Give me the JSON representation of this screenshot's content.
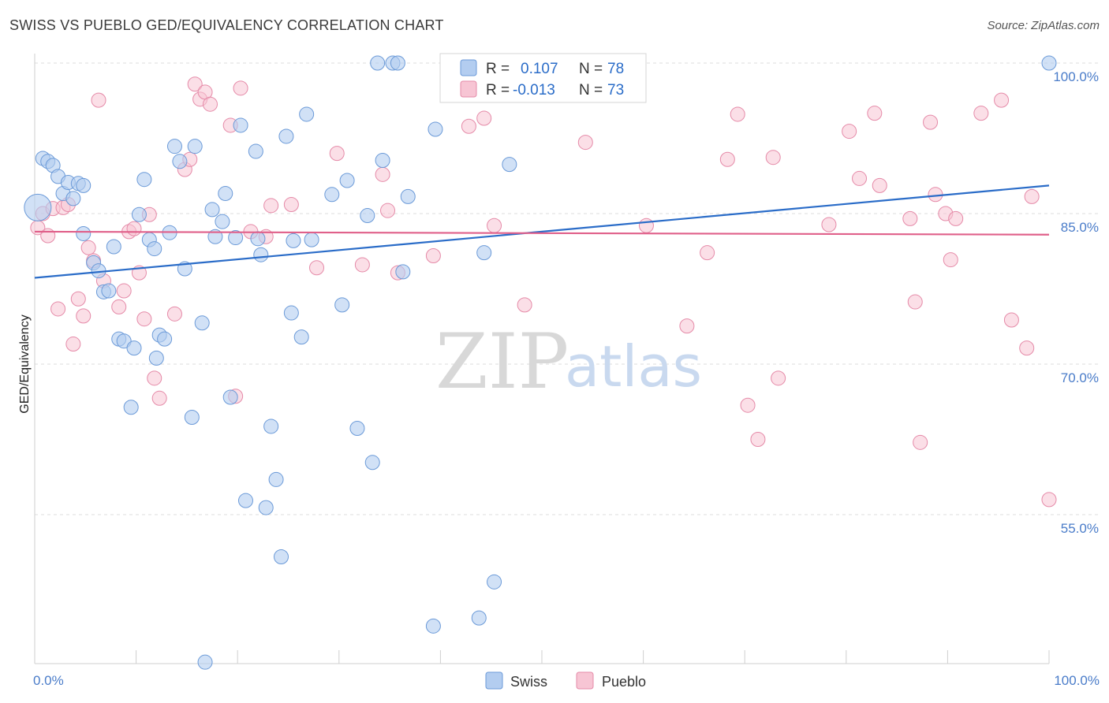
{
  "title": "SWISS VS PUEBLO GED/EQUIVALENCY CORRELATION CHART",
  "source": "Source: ZipAtlas.com",
  "watermark": {
    "zip": "ZIP",
    "atlas": "atlas"
  },
  "legend": {
    "swiss": {
      "r_label": "R =",
      "r_value": "0.107",
      "n_label": "N =",
      "n_value": "78"
    },
    "pueblo": {
      "r_label": "R =",
      "r_value": "-0.013",
      "n_label": "N =",
      "n_value": "73"
    }
  },
  "colors": {
    "swiss_fill": "#b3cdf0",
    "swiss_stroke": "#6b9ad8",
    "swiss_line": "#2a6cc8",
    "pueblo_fill": "#f7c5d4",
    "pueblo_stroke": "#e58aa8",
    "pueblo_line": "#e0608a",
    "tick_label": "#4a7cc9"
  },
  "chart_data": {
    "type": "scatter",
    "title": "SWISS VS PUEBLO GED/EQUIVALENCY CORRELATION CHART",
    "xlabel": "",
    "ylabel": "GED/Equivalency",
    "xlim": [
      0,
      100
    ],
    "ylim": [
      40,
      101.5
    ],
    "y_ticks": [
      {
        "value": 100,
        "label": "100.0%"
      },
      {
        "value": 85,
        "label": "85.0%"
      },
      {
        "value": 70,
        "label": "70.0%"
      },
      {
        "value": 55,
        "label": "55.0%"
      }
    ],
    "x_ticks": [
      {
        "value": 0,
        "label": "0.0%"
      },
      {
        "value": 100,
        "label": "100.0%"
      }
    ],
    "grid": true,
    "legend_position": "top-center",
    "series": [
      {
        "name": "Swiss",
        "trend": {
          "x": [
            0,
            100
          ],
          "y": [
            78.6,
            87.8
          ]
        },
        "points": [
          [
            0.3,
            85.6
          ],
          [
            0.8,
            90.5
          ],
          [
            1.3,
            90.2
          ],
          [
            1.8,
            89.8
          ],
          [
            2.3,
            88.7
          ],
          [
            2.8,
            87.0
          ],
          [
            3.3,
            88.1
          ],
          [
            3.8,
            86.5
          ],
          [
            4.3,
            88.0
          ],
          [
            4.8,
            87.8
          ],
          [
            4.8,
            83.0
          ],
          [
            5.8,
            80.1
          ],
          [
            6.3,
            79.3
          ],
          [
            6.8,
            77.2
          ],
          [
            7.3,
            77.3
          ],
          [
            7.8,
            81.7
          ],
          [
            8.3,
            72.5
          ],
          [
            8.8,
            72.3
          ],
          [
            9.5,
            65.7
          ],
          [
            9.8,
            71.6
          ],
          [
            10.3,
            84.9
          ],
          [
            10.8,
            88.4
          ],
          [
            11.3,
            82.4
          ],
          [
            11.8,
            81.5
          ],
          [
            12.3,
            72.9
          ],
          [
            12.8,
            72.5
          ],
          [
            13.3,
            83.1
          ],
          [
            13.8,
            91.7
          ],
          [
            14.3,
            90.2
          ],
          [
            14.8,
            79.5
          ],
          [
            15.5,
            64.7
          ],
          [
            15.8,
            91.7
          ],
          [
            16.5,
            74.1
          ],
          [
            16.8,
            40.3
          ],
          [
            17.5,
            85.4
          ],
          [
            18.5,
            84.2
          ],
          [
            18.8,
            87.0
          ],
          [
            19.3,
            66.7
          ],
          [
            17.8,
            82.7
          ],
          [
            19.8,
            82.6
          ],
          [
            20.3,
            93.8
          ],
          [
            20.8,
            56.4
          ],
          [
            21.8,
            91.2
          ],
          [
            22.3,
            80.9
          ],
          [
            22.8,
            55.7
          ],
          [
            23.3,
            63.8
          ],
          [
            23.8,
            58.5
          ],
          [
            24.3,
            50.8
          ],
          [
            24.8,
            92.7
          ],
          [
            25.3,
            75.1
          ],
          [
            25.5,
            82.3
          ],
          [
            26.3,
            72.7
          ],
          [
            26.8,
            94.9
          ],
          [
            27.3,
            82.4
          ],
          [
            29.3,
            86.9
          ],
          [
            30.3,
            75.9
          ],
          [
            30.8,
            88.3
          ],
          [
            31.8,
            63.6
          ],
          [
            32.8,
            84.8
          ],
          [
            33.3,
            60.2
          ],
          [
            33.8,
            100
          ],
          [
            34.3,
            90.3
          ],
          [
            35.3,
            100
          ],
          [
            35.8,
            100
          ],
          [
            36.3,
            79.2
          ],
          [
            36.8,
            86.7
          ],
          [
            39.3,
            43.9
          ],
          [
            39.5,
            93.4
          ],
          [
            41.3,
            100
          ],
          [
            43.8,
            44.7
          ],
          [
            44.3,
            81.1
          ],
          [
            45.3,
            48.3
          ],
          [
            46.8,
            89.9
          ],
          [
            48.3,
            100
          ],
          [
            52.3,
            100
          ],
          [
            100.0,
            100
          ],
          [
            22.0,
            82.5
          ],
          [
            12.0,
            70.6
          ]
        ]
      },
      {
        "name": "Pueblo",
        "trend": {
          "x": [
            0,
            100
          ],
          "y": [
            83.2,
            82.9
          ]
        },
        "points": [
          [
            0.3,
            83.6
          ],
          [
            0.8,
            85.0
          ],
          [
            1.3,
            82.8
          ],
          [
            1.8,
            85.5
          ],
          [
            2.3,
            75.5
          ],
          [
            2.8,
            85.6
          ],
          [
            3.3,
            85.9
          ],
          [
            3.8,
            72.0
          ],
          [
            4.3,
            76.5
          ],
          [
            4.8,
            74.8
          ],
          [
            5.3,
            81.6
          ],
          [
            5.8,
            80.3
          ],
          [
            6.3,
            96.3
          ],
          [
            6.8,
            78.3
          ],
          [
            8.3,
            75.7
          ],
          [
            8.8,
            77.3
          ],
          [
            9.3,
            83.2
          ],
          [
            9.8,
            83.5
          ],
          [
            10.3,
            79.1
          ],
          [
            10.8,
            74.5
          ],
          [
            11.3,
            84.9
          ],
          [
            11.8,
            68.6
          ],
          [
            12.3,
            66.6
          ],
          [
            13.8,
            75.0
          ],
          [
            14.8,
            89.4
          ],
          [
            15.3,
            90.4
          ],
          [
            15.8,
            97.9
          ],
          [
            16.3,
            96.4
          ],
          [
            16.8,
            97.1
          ],
          [
            17.3,
            95.9
          ],
          [
            19.3,
            93.8
          ],
          [
            19.8,
            66.8
          ],
          [
            20.3,
            97.5
          ],
          [
            21.3,
            83.2
          ],
          [
            22.8,
            82.7
          ],
          [
            23.3,
            85.8
          ],
          [
            25.3,
            85.9
          ],
          [
            27.8,
            79.6
          ],
          [
            29.8,
            91.0
          ],
          [
            32.3,
            79.9
          ],
          [
            34.3,
            88.9
          ],
          [
            34.8,
            85.3
          ],
          [
            35.8,
            79.1
          ],
          [
            39.3,
            80.8
          ],
          [
            42.8,
            93.7
          ],
          [
            44.3,
            94.5
          ],
          [
            45.3,
            83.8
          ],
          [
            48.3,
            75.9
          ],
          [
            54.3,
            92.1
          ],
          [
            60.3,
            83.8
          ],
          [
            64.3,
            73.8
          ],
          [
            66.3,
            81.1
          ],
          [
            68.3,
            90.4
          ],
          [
            69.3,
            94.9
          ],
          [
            70.3,
            65.9
          ],
          [
            71.3,
            62.5
          ],
          [
            72.8,
            90.6
          ],
          [
            73.3,
            68.6
          ],
          [
            78.3,
            83.9
          ],
          [
            80.3,
            93.2
          ],
          [
            81.3,
            88.5
          ],
          [
            82.8,
            95.0
          ],
          [
            83.3,
            87.8
          ],
          [
            86.3,
            84.5
          ],
          [
            86.8,
            76.2
          ],
          [
            87.3,
            62.2
          ],
          [
            88.3,
            94.1
          ],
          [
            89.8,
            85.0
          ],
          [
            90.3,
            80.4
          ],
          [
            90.8,
            84.5
          ],
          [
            93.3,
            95.0
          ],
          [
            95.3,
            96.3
          ],
          [
            96.3,
            74.4
          ]
        ]
      }
    ],
    "extra_pueblo_points": [
      [
        97.8,
        71.6
      ],
      [
        98.3,
        86.7
      ],
      [
        100.0,
        56.5
      ],
      [
        88.8,
        86.9
      ]
    ]
  },
  "bottom_legend": {
    "swiss": "Swiss",
    "pueblo": "Pueblo"
  }
}
